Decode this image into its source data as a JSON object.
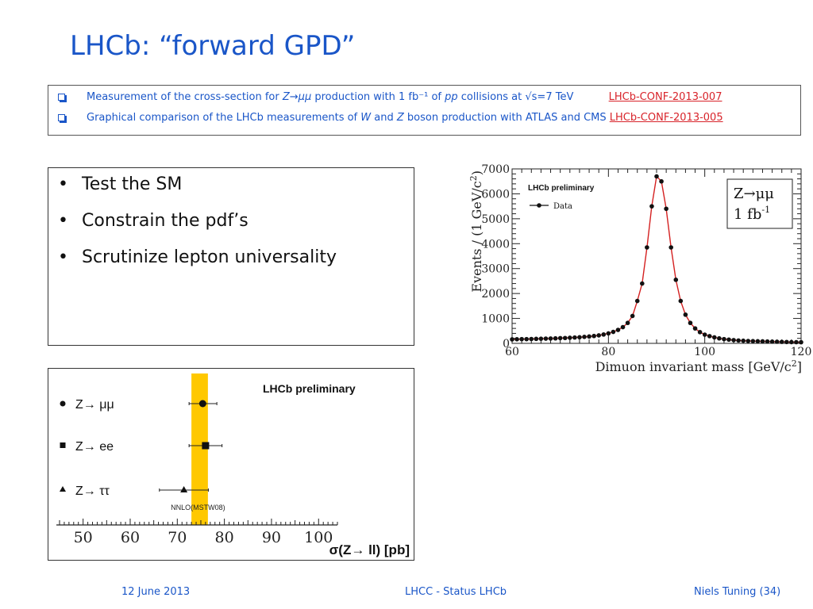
{
  "title": "LHCb: “forward GPD”",
  "references": [
    {
      "parts": [
        {
          "t": "Measurement of the cross-section for ",
          "style": "normal"
        },
        {
          "t": "Z→μμ",
          "style": "italic"
        },
        {
          "t": " production with 1 fb⁻¹ of ",
          "style": "normal"
        },
        {
          "t": "pp",
          "style": "italic"
        },
        {
          "t": " collisions at √s=7 TeV",
          "style": "normal"
        }
      ],
      "link": "LHCb-CONF-2013-007"
    },
    {
      "parts": [
        {
          "t": "Graphical comparison of the LHCb measurements of ",
          "style": "normal"
        },
        {
          "t": "W",
          "style": "italic"
        },
        {
          "t": " and ",
          "style": "normal"
        },
        {
          "t": "Z",
          "style": "italic"
        },
        {
          "t": " boson production with ATLAS and CMS ",
          "style": "normal"
        }
      ],
      "link": "LHCb-CONF-2013-005"
    }
  ],
  "bullets": [
    "Test the SM",
    "Constrain the pdf’s",
    "Scrutinize lepton universality"
  ],
  "footer": {
    "date": "12 June 2013",
    "center": "LHCC - Status LHCb",
    "right": "Niels Tuning (34)"
  },
  "chart_data": [
    {
      "type": "scatter",
      "title": "LHCb preliminary",
      "xlabel": "σ(Z→ ll) [pb]",
      "xlim": [
        45,
        104
      ],
      "xticks": [
        50,
        60,
        70,
        80,
        90,
        100
      ],
      "band": {
        "label": "NNLO(MSTW08)",
        "range": [
          73,
          76.5
        ],
        "color": "#ffc800"
      },
      "points": [
        {
          "label": "Z→ μμ",
          "marker": "circle",
          "value": 75.4,
          "err": [
            2.9,
            3.0
          ]
        },
        {
          "label": "Z→ ee",
          "marker": "square",
          "value": 76.0,
          "err": [
            3.5,
            3.5
          ]
        },
        {
          "label": "Z→ ττ",
          "marker": "triangle",
          "value": 71.4,
          "err": [
            5.2,
            5.2
          ]
        }
      ]
    },
    {
      "type": "line",
      "title": "LHCb preliminary",
      "legend": "Data",
      "legend_position": "top-left",
      "annotation": [
        "Z→μμ",
        "1 fb",
        "-1"
      ],
      "xlabel": "Dimuon invariant mass [GeV/c",
      "xlabel_sup": "2",
      "xlabel_end": "]",
      "ylabel": "Events / (1 GeV/c",
      "ylabel_sup": "2",
      "ylabel_end": ")",
      "xlim": [
        60,
        120
      ],
      "ylim": [
        0,
        7000
      ],
      "xticks": [
        60,
        80,
        100,
        120
      ],
      "yticks": [
        0,
        1000,
        2000,
        3000,
        4000,
        5000,
        6000,
        7000
      ],
      "line_color": "#d42020",
      "marker_color": "#111111",
      "x": [
        60,
        61,
        62,
        63,
        64,
        65,
        66,
        67,
        68,
        69,
        70,
        71,
        72,
        73,
        74,
        75,
        76,
        77,
        78,
        79,
        80,
        81,
        82,
        83,
        84,
        85,
        86,
        87,
        88,
        89,
        90,
        91,
        92,
        93,
        94,
        95,
        96,
        97,
        98,
        99,
        100,
        101,
        102,
        103,
        104,
        105,
        106,
        107,
        108,
        109,
        110,
        111,
        112,
        113,
        114,
        115,
        116,
        117,
        118,
        119,
        120
      ],
      "y": [
        160,
        165,
        170,
        170,
        175,
        180,
        185,
        190,
        195,
        200,
        210,
        215,
        225,
        235,
        245,
        260,
        275,
        295,
        320,
        355,
        400,
        460,
        540,
        650,
        820,
        1100,
        1700,
        2400,
        3850,
        5500,
        6700,
        6500,
        5400,
        3850,
        2550,
        1700,
        1150,
        820,
        600,
        450,
        350,
        290,
        240,
        200,
        170,
        150,
        130,
        115,
        105,
        95,
        90,
        85,
        80,
        75,
        70,
        65,
        60,
        55,
        50,
        48,
        45
      ]
    }
  ]
}
